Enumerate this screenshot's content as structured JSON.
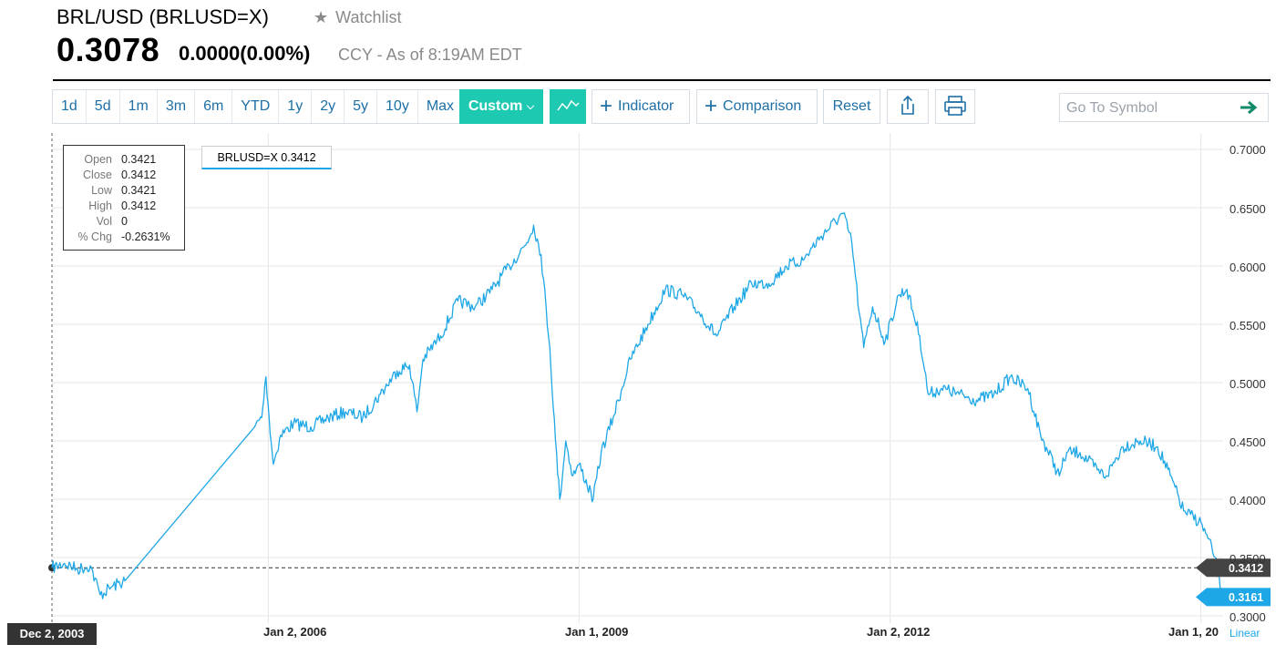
{
  "header": {
    "title": "BRL/USD (BRLUSD=X)",
    "watchlist_label": "Watchlist",
    "price": "0.3078",
    "change": "0.0000",
    "change_pct": "(0.00%)",
    "as_of": "CCY - As of 8:19AM EDT"
  },
  "toolbar": {
    "ranges": [
      "1d",
      "5d",
      "1m",
      "3m",
      "6m",
      "YTD",
      "1y",
      "2y",
      "5y",
      "10y",
      "Max"
    ],
    "custom_label": "Custom",
    "indicator_label": "Indicator",
    "comparison_label": "Comparison",
    "reset_label": "Reset",
    "search_placeholder": "Go To Symbol",
    "accent_color": "#1dc9b0"
  },
  "tooltip": {
    "labels": [
      "Open",
      "Close",
      "Low",
      "High",
      "Vol",
      "% Chg"
    ],
    "values": [
      "0.3421",
      "0.3412",
      "0.3421",
      "0.3412",
      "0",
      "-0.2631%"
    ],
    "series_label": "BRLUSD=X 0.3412"
  },
  "axis": {
    "y_ticks": [
      "0.7000",
      "0.6500",
      "0.6000",
      "0.5500",
      "0.5000",
      "0.4500",
      "0.4000",
      "0.3500",
      "0.3000"
    ],
    "x_ticks": [
      "Jan 2, 2006",
      "Jan 1, 2009",
      "Jan 2, 2012",
      "Jan 1, 20"
    ],
    "start_label": "Dec 2, 2003",
    "crosshair_value": "0.3412",
    "last_value": "0.3161",
    "scale_label": "Linear"
  },
  "chart_data": {
    "type": "line",
    "series": [
      {
        "name": "BRLUSD=X",
        "color": "#1ea7e6",
        "points": [
          [
            "2003-12-02",
            0.3412
          ],
          [
            "2004-01-15",
            0.345
          ],
          [
            "2004-03-01",
            0.34
          ],
          [
            "2004-04-15",
            0.343
          ],
          [
            "2004-05-20",
            0.318
          ],
          [
            "2004-07-01",
            0.325
          ],
          [
            "2004-08-15",
            0.33
          ],
          [
            "2005-11-15",
            0.462
          ],
          [
            "2005-12-10",
            0.47
          ],
          [
            "2005-12-25",
            0.505
          ],
          [
            "2006-01-05",
            0.47
          ],
          [
            "2006-01-20",
            0.43
          ],
          [
            "2006-02-15",
            0.455
          ],
          [
            "2006-04-01",
            0.465
          ],
          [
            "2006-06-01",
            0.462
          ],
          [
            "2006-08-01",
            0.47
          ],
          [
            "2006-10-01",
            0.475
          ],
          [
            "2006-12-01",
            0.47
          ],
          [
            "2007-02-01",
            0.49
          ],
          [
            "2007-04-01",
            0.51
          ],
          [
            "2007-05-15",
            0.515
          ],
          [
            "2007-06-10",
            0.475
          ],
          [
            "2007-07-01",
            0.52
          ],
          [
            "2007-09-01",
            0.54
          ],
          [
            "2007-11-01",
            0.57
          ],
          [
            "2008-01-01",
            0.565
          ],
          [
            "2008-03-01",
            0.58
          ],
          [
            "2008-05-01",
            0.6
          ],
          [
            "2008-07-01",
            0.62
          ],
          [
            "2008-07-25",
            0.635
          ],
          [
            "2008-08-20",
            0.61
          ],
          [
            "2008-09-20",
            0.53
          ],
          [
            "2008-10-10",
            0.45
          ],
          [
            "2008-10-25",
            0.4
          ],
          [
            "2008-11-15",
            0.45
          ],
          [
            "2008-12-10",
            0.42
          ],
          [
            "2009-01-01",
            0.43
          ],
          [
            "2009-02-20",
            0.4
          ],
          [
            "2009-03-20",
            0.44
          ],
          [
            "2009-05-01",
            0.47
          ],
          [
            "2009-07-01",
            0.52
          ],
          [
            "2009-09-01",
            0.55
          ],
          [
            "2009-11-01",
            0.58
          ],
          [
            "2010-01-01",
            0.575
          ],
          [
            "2010-03-01",
            0.56
          ],
          [
            "2010-05-01",
            0.54
          ],
          [
            "2010-07-01",
            0.565
          ],
          [
            "2010-09-01",
            0.585
          ],
          [
            "2010-11-01",
            0.585
          ],
          [
            "2011-01-01",
            0.6
          ],
          [
            "2011-03-01",
            0.605
          ],
          [
            "2011-05-01",
            0.625
          ],
          [
            "2011-07-20",
            0.645
          ],
          [
            "2011-08-20",
            0.62
          ],
          [
            "2011-09-15",
            0.56
          ],
          [
            "2011-10-01",
            0.53
          ],
          [
            "2011-11-01",
            0.565
          ],
          [
            "2011-12-15",
            0.535
          ],
          [
            "2012-02-01",
            0.575
          ],
          [
            "2012-03-01",
            0.58
          ],
          [
            "2012-04-15",
            0.54
          ],
          [
            "2012-05-15",
            0.49
          ],
          [
            "2012-07-01",
            0.495
          ],
          [
            "2012-09-01",
            0.49
          ],
          [
            "2012-11-01",
            0.485
          ],
          [
            "2013-01-01",
            0.49
          ],
          [
            "2013-03-01",
            0.505
          ],
          [
            "2013-05-01",
            0.495
          ],
          [
            "2013-06-15",
            0.455
          ],
          [
            "2013-08-20",
            0.42
          ],
          [
            "2013-09-15",
            0.44
          ],
          [
            "2013-11-01",
            0.44
          ],
          [
            "2014-01-01",
            0.425
          ],
          [
            "2014-02-01",
            0.42
          ],
          [
            "2014-04-01",
            0.445
          ],
          [
            "2014-06-01",
            0.45
          ],
          [
            "2014-08-01",
            0.445
          ],
          [
            "2014-09-15",
            0.42
          ],
          [
            "2014-11-01",
            0.39
          ],
          [
            "2015-01-01",
            0.38
          ],
          [
            "2015-02-20",
            0.35
          ],
          [
            "2015-03-15",
            0.315
          ]
        ]
      }
    ],
    "ylim": [
      0.3,
      0.7
    ],
    "xlim": [
      "2003-12-02",
      "2015-03-20"
    ],
    "crosshair": {
      "date": "2003-12-02",
      "value": 0.3412
    },
    "last_value": 0.3161,
    "grid": true,
    "scale": "linear"
  }
}
